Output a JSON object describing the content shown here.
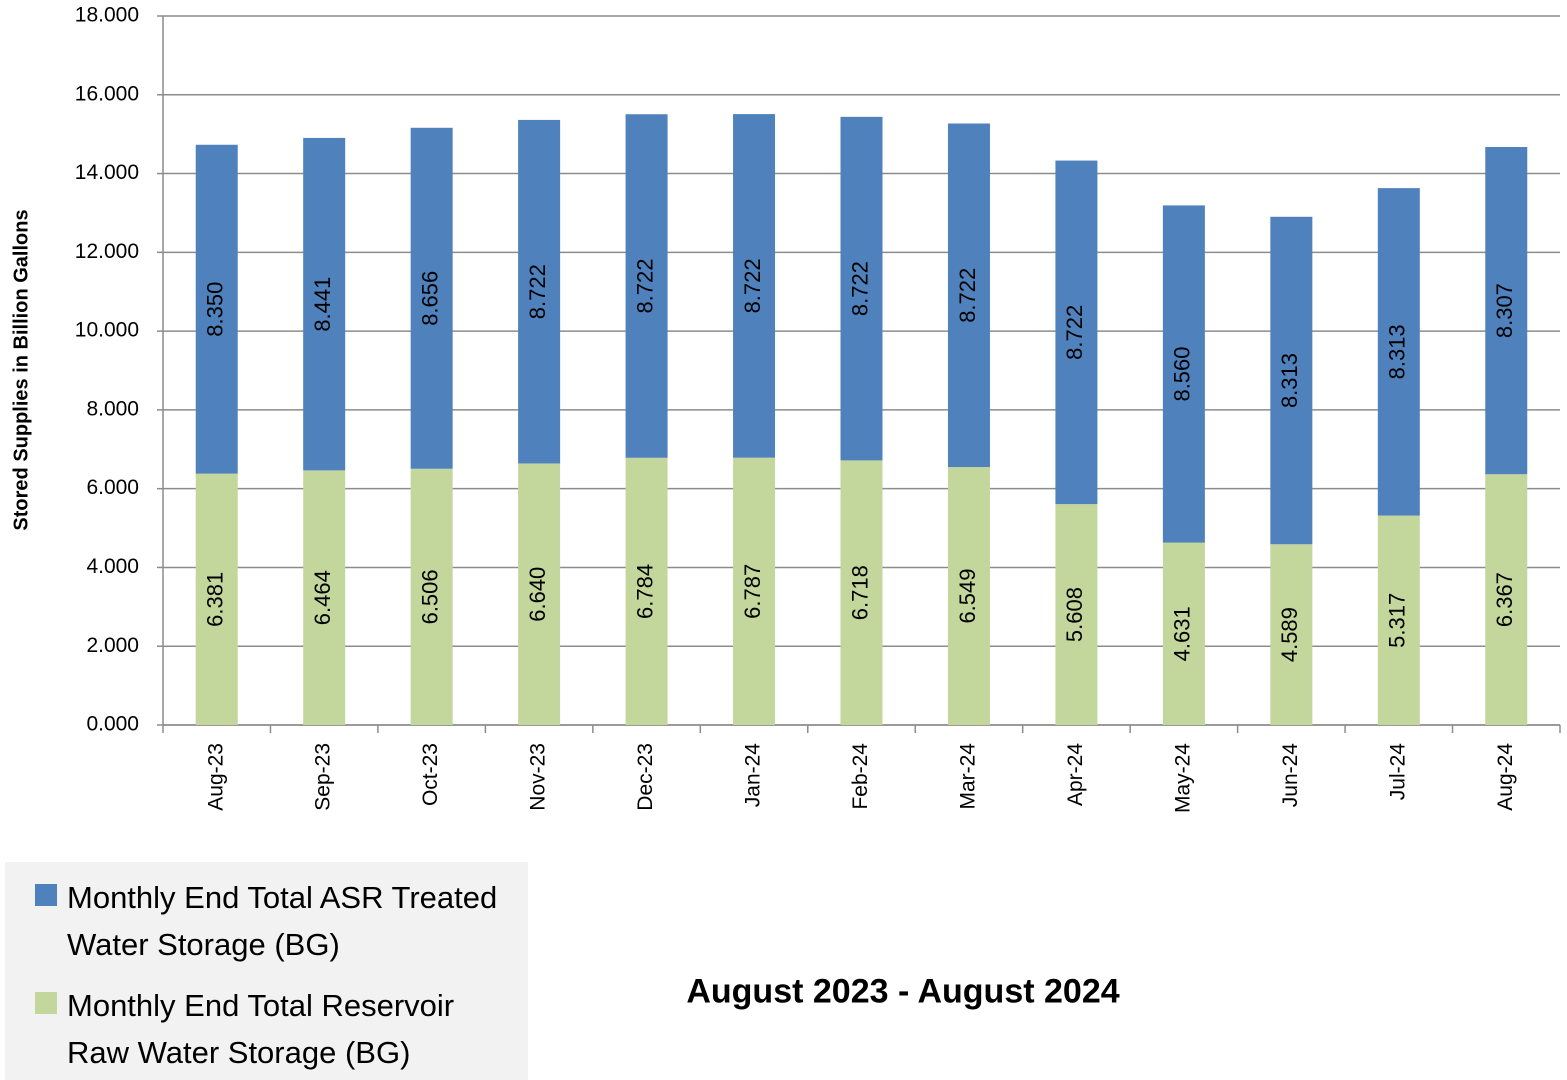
{
  "chart_data": {
    "type": "stacked_bar",
    "title": "August 2023 - August 2024",
    "y_label": "Stored Supplies in Billion Gallons",
    "categories": [
      "Aug-23",
      "Sep-23",
      "Oct-23",
      "Nov-23",
      "Dec-23",
      "Jan-24",
      "Feb-24",
      "Mar-24",
      "Apr-24",
      "May-24",
      "Jun-24",
      "Jul-24",
      "Aug-24"
    ],
    "series": [
      {
        "name": "Monthly End Total ASR Treated Water Storage (BG)",
        "color": "#4f81bd",
        "values": [
          8.35,
          8.441,
          8.656,
          8.722,
          8.722,
          8.722,
          8.722,
          8.722,
          8.722,
          8.56,
          8.313,
          8.313,
          8.307
        ],
        "value_labels": [
          "8.350",
          "8.441",
          "8.656",
          "8.722",
          "8.722",
          "8.722",
          "8.722",
          "8.722",
          "8.722",
          "8.560",
          "8.313",
          "8.313",
          "8.307"
        ]
      },
      {
        "name": "Monthly End Total Reservoir Raw Water Storage (BG)",
        "color": "#c3d69b",
        "values": [
          6.381,
          6.464,
          6.506,
          6.64,
          6.784,
          6.787,
          6.718,
          6.549,
          5.608,
          4.631,
          4.589,
          5.317,
          6.367
        ],
        "value_labels": [
          "6.381",
          "6.464",
          "6.506",
          "6.640",
          "6.784",
          "6.787",
          "6.718",
          "6.549",
          "5.608",
          "4.631",
          "4.589",
          "5.317",
          "6.367"
        ]
      }
    ],
    "ylim": [
      0,
      18
    ],
    "yticks": [
      {
        "value": 0,
        "label": "0.000"
      },
      {
        "value": 2,
        "label": "2.000"
      },
      {
        "value": 4,
        "label": "4.000"
      },
      {
        "value": 6,
        "label": "6.000"
      },
      {
        "value": 8,
        "label": "8.000"
      },
      {
        "value": 10,
        "label": "10.000"
      },
      {
        "value": 12,
        "label": "12.000"
      },
      {
        "value": 14,
        "label": "14.000"
      },
      {
        "value": 16,
        "label": "16.000"
      },
      {
        "value": 18,
        "label": "18.000"
      }
    ],
    "grid": true
  }
}
